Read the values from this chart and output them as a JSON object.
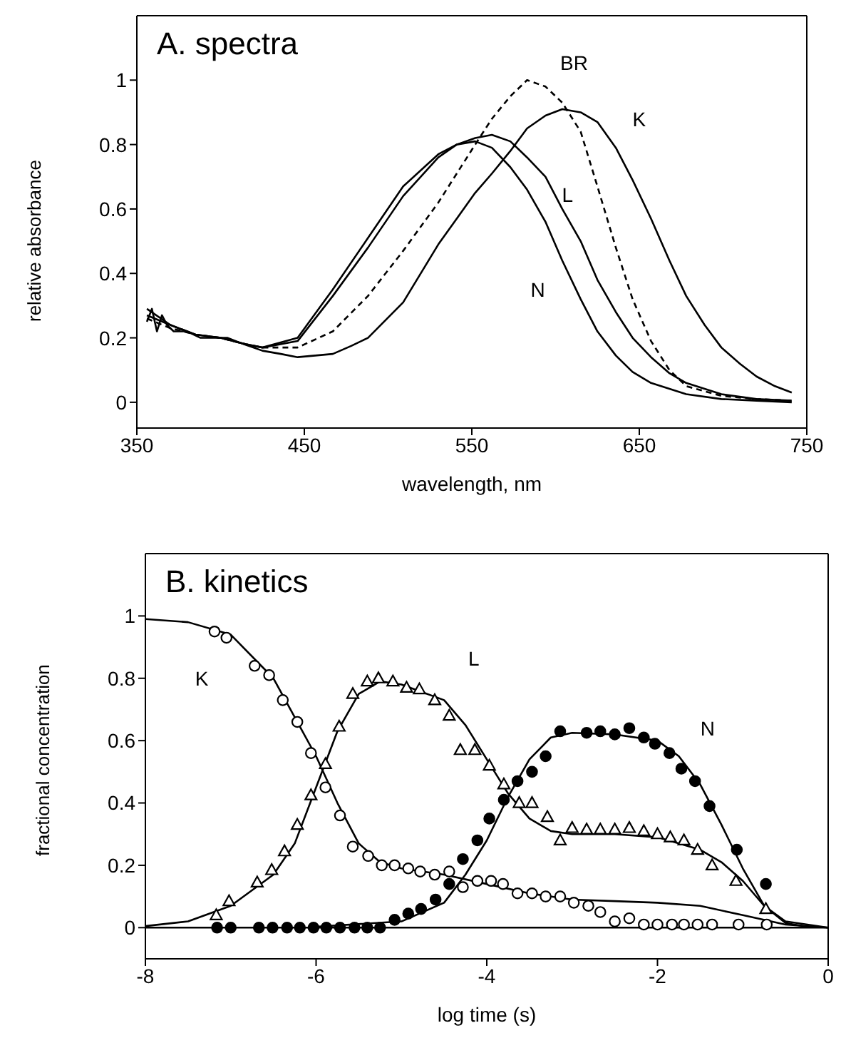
{
  "chart_data": [
    {
      "type": "line",
      "title": "A. spectra",
      "xlabel": "wavelength, nm",
      "ylabel": "relative absorbance",
      "xlim": [
        350,
        750
      ],
      "xticks": [
        350,
        450,
        550,
        650,
        750
      ],
      "ylim": [
        -0.08,
        1.2
      ],
      "yticks": [
        0,
        0.2,
        0.4,
        0.6,
        0.8,
        1
      ],
      "grid": false,
      "marker": "none",
      "series": [
        {
          "name": "BR",
          "color": "#000000",
          "line_style": "dashed",
          "x": [
            356,
            370,
            385,
            400,
            415,
            425,
            446,
            467,
            488,
            509,
            530,
            541,
            552,
            562,
            573,
            583,
            594,
            604,
            615,
            625,
            636,
            646,
            657,
            668,
            678,
            699,
            720,
            741
          ],
          "values": [
            0.26,
            0.23,
            0.21,
            0.2,
            0.18,
            0.17,
            0.17,
            0.22,
            0.33,
            0.47,
            0.62,
            0.71,
            0.8,
            0.88,
            0.95,
            1.0,
            0.98,
            0.93,
            0.84,
            0.67,
            0.48,
            0.32,
            0.19,
            0.1,
            0.05,
            0.02,
            0.01,
            0.005
          ]
        },
        {
          "name": "K",
          "color": "#000000",
          "line_style": "solid",
          "x": [
            356,
            359,
            362,
            365,
            368,
            372,
            380,
            388,
            396,
            404,
            414,
            425,
            436,
            446,
            467,
            478,
            488,
            509,
            530,
            541,
            552,
            562,
            573,
            583,
            594,
            604,
            615,
            625,
            636,
            646,
            657,
            668,
            678,
            689,
            699,
            710,
            720,
            731,
            741
          ],
          "values": [
            0.25,
            0.29,
            0.22,
            0.27,
            0.24,
            0.22,
            0.22,
            0.2,
            0.2,
            0.2,
            0.18,
            0.16,
            0.15,
            0.14,
            0.15,
            0.175,
            0.2,
            0.31,
            0.49,
            0.57,
            0.65,
            0.71,
            0.78,
            0.85,
            0.89,
            0.91,
            0.9,
            0.87,
            0.79,
            0.69,
            0.57,
            0.44,
            0.33,
            0.24,
            0.17,
            0.12,
            0.08,
            0.05,
            0.03
          ]
        },
        {
          "name": "L",
          "color": "#000000",
          "line_style": "solid",
          "x": [
            356,
            370,
            385,
            400,
            415,
            425,
            446,
            467,
            488,
            509,
            530,
            541,
            552,
            562,
            573,
            583,
            594,
            604,
            615,
            625,
            636,
            646,
            657,
            668,
            678,
            699,
            720,
            741
          ],
          "values": [
            0.27,
            0.24,
            0.21,
            0.2,
            0.18,
            0.17,
            0.19,
            0.33,
            0.48,
            0.64,
            0.76,
            0.8,
            0.82,
            0.83,
            0.81,
            0.76,
            0.7,
            0.6,
            0.5,
            0.38,
            0.28,
            0.2,
            0.14,
            0.09,
            0.06,
            0.025,
            0.01,
            0.005
          ]
        },
        {
          "name": "N",
          "color": "#000000",
          "line_style": "solid",
          "x": [
            356,
            370,
            385,
            400,
            415,
            425,
            446,
            467,
            488,
            509,
            530,
            541,
            552,
            562,
            573,
            583,
            594,
            604,
            615,
            625,
            636,
            646,
            657,
            678,
            699,
            720,
            741
          ],
          "values": [
            0.29,
            0.24,
            0.21,
            0.2,
            0.18,
            0.17,
            0.2,
            0.35,
            0.51,
            0.67,
            0.77,
            0.8,
            0.81,
            0.79,
            0.73,
            0.66,
            0.56,
            0.44,
            0.32,
            0.22,
            0.145,
            0.094,
            0.06,
            0.025,
            0.01,
            0.005,
            0
          ]
        }
      ]
    },
    {
      "type": "scatter",
      "title": "B. kinetics",
      "xlabel": "log time (s)",
      "ylabel": "fractional concentration",
      "xlim": [
        -8,
        0
      ],
      "xticks": [
        -8,
        -6,
        -4,
        -2,
        0
      ],
      "ylim": [
        -0.1,
        1.2
      ],
      "yticks": [
        0,
        0.2,
        0.4,
        0.6,
        0.8,
        1
      ],
      "grid": false,
      "ref_lines": [
        {
          "axis": "y",
          "value": 0,
          "color": "#000000"
        }
      ],
      "series": [
        {
          "name": "K",
          "marker": "circle",
          "color": "#000000",
          "x": [
            -7.19,
            -7.05,
            -6.72,
            -6.55,
            -6.39,
            -6.22,
            -6.06,
            -5.89,
            -5.72,
            -5.57,
            -5.39,
            -5.23,
            -5.08,
            -4.92,
            -4.78,
            -4.61,
            -4.44,
            -4.28,
            -4.11,
            -3.95,
            -3.81,
            -3.64,
            -3.47,
            -3.31,
            -3.14,
            -2.98,
            -2.81,
            -2.67,
            -2.5,
            -2.33,
            -2.16,
            -2.0,
            -1.83,
            -1.69,
            -1.53,
            -1.36,
            -1.05,
            -0.72
          ],
          "values": [
            0.95,
            0.93,
            0.84,
            0.81,
            0.73,
            0.66,
            0.56,
            0.45,
            0.36,
            0.26,
            0.23,
            0.2,
            0.2,
            0.19,
            0.18,
            0.17,
            0.18,
            0.13,
            0.15,
            0.15,
            0.14,
            0.11,
            0.11,
            0.1,
            0.1,
            0.08,
            0.07,
            0.05,
            0.02,
            0.03,
            0.01,
            0.01,
            0.01,
            0.01,
            0.01,
            0.01,
            0.01,
            0.01
          ]
        },
        {
          "name": "L",
          "marker": "triangle",
          "color": "#000000",
          "x": [
            -7.17,
            -7.02,
            -6.69,
            -6.52,
            -6.37,
            -6.22,
            -6.06,
            -5.89,
            -5.73,
            -5.57,
            -5.4,
            -5.27,
            -5.1,
            -4.94,
            -4.79,
            -4.61,
            -4.44,
            -4.31,
            -4.14,
            -3.97,
            -3.8,
            -3.62,
            -3.47,
            -3.29,
            -3.14,
            -3.0,
            -2.83,
            -2.67,
            -2.5,
            -2.33,
            -2.16,
            -2.0,
            -1.85,
            -1.69,
            -1.53,
            -1.36,
            -1.08,
            -0.73
          ],
          "values": [
            0.04,
            0.085,
            0.145,
            0.185,
            0.245,
            0.33,
            0.425,
            0.525,
            0.645,
            0.75,
            0.79,
            0.8,
            0.79,
            0.77,
            0.765,
            0.73,
            0.68,
            0.57,
            0.57,
            0.52,
            0.46,
            0.4,
            0.4,
            0.355,
            0.28,
            0.32,
            0.315,
            0.315,
            0.315,
            0.32,
            0.31,
            0.3,
            0.29,
            0.28,
            0.25,
            0.2,
            0.15,
            0.06
          ]
        },
        {
          "name": "N",
          "marker": "circle",
          "color": "#000000",
          "x": [
            -7.16,
            -7.0,
            -6.67,
            -6.51,
            -6.34,
            -6.19,
            -6.03,
            -5.88,
            -5.72,
            -5.55,
            -5.4,
            -5.25,
            -5.08,
            -4.92,
            -4.77,
            -4.6,
            -4.44,
            -4.28,
            -4.11,
            -3.97,
            -3.8,
            -3.64,
            -3.47,
            -3.31,
            -3.14,
            -2.83,
            -2.67,
            -2.5,
            -2.33,
            -2.16,
            -2.03,
            -1.86,
            -1.72,
            -1.56,
            -1.39,
            -1.07,
            -0.73
          ],
          "values": [
            0,
            0,
            0,
            0,
            0,
            0,
            0,
            0,
            0,
            0,
            0,
            0,
            0.025,
            0.045,
            0.06,
            0.09,
            0.14,
            0.22,
            0.28,
            0.35,
            0.41,
            0.47,
            0.5,
            0.55,
            0.63,
            0.625,
            0.63,
            0.62,
            0.64,
            0.61,
            0.59,
            0.56,
            0.51,
            0.47,
            0.39,
            0.25,
            0.14
          ]
        },
        {
          "type": "line",
          "color": "#000000",
          "x": [
            -8,
            -7.5,
            -7,
            -6.5,
            -6,
            -5.75,
            -5.5,
            -5.25,
            -5,
            -4.5,
            -4,
            -3.5,
            -3,
            -2.5,
            -2,
            -1.5,
            -1,
            -0.5,
            0
          ],
          "values": [
            0.99,
            0.98,
            0.94,
            0.8,
            0.55,
            0.4,
            0.27,
            0.21,
            0.19,
            0.17,
            0.14,
            0.11,
            0.09,
            0.085,
            0.08,
            0.07,
            0.04,
            0.01,
            0
          ]
        },
        {
          "type": "line",
          "color": "#000000",
          "x": [
            -8,
            -7.5,
            -7,
            -6.5,
            -6.25,
            -6,
            -5.75,
            -5.5,
            -5.25,
            -5,
            -4.5,
            -4.25,
            -4,
            -3.75,
            -3.5,
            -3.25,
            -3,
            -2.5,
            -2,
            -1.5,
            -1.25,
            -1,
            -0.75,
            -0.5,
            0
          ],
          "values": [
            0.005,
            0.02,
            0.07,
            0.17,
            0.27,
            0.45,
            0.63,
            0.75,
            0.79,
            0.78,
            0.73,
            0.65,
            0.54,
            0.43,
            0.35,
            0.31,
            0.3,
            0.3,
            0.29,
            0.25,
            0.21,
            0.15,
            0.07,
            0.02,
            0
          ]
        },
        {
          "type": "line",
          "color": "#000000",
          "x": [
            -6,
            -5,
            -4.5,
            -4.25,
            -4,
            -3.75,
            -3.5,
            -3.25,
            -3,
            -2.5,
            -2,
            -1.75,
            -1.5,
            -1.25,
            -1,
            -0.75,
            -0.5,
            -0.25
          ],
          "values": [
            0.003,
            0.02,
            0.08,
            0.17,
            0.28,
            0.42,
            0.54,
            0.61,
            0.625,
            0.62,
            0.6,
            0.55,
            0.46,
            0.33,
            0.19,
            0.07,
            0.015,
            0.003
          ]
        }
      ]
    }
  ]
}
